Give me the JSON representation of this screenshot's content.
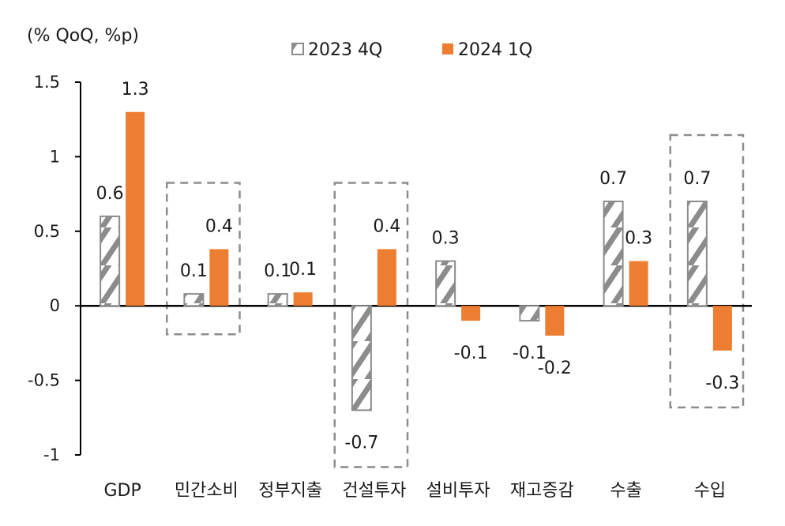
{
  "chart_data": {
    "type": "bar",
    "unit_label": "(% QoQ, %p)",
    "categories": [
      "GDP",
      "민간소비",
      "정부지출",
      "건설투자",
      "설비투자",
      "재고증감",
      "수출",
      "수입"
    ],
    "series": [
      {
        "name": "2023 4Q",
        "values": [
          0.6,
          0.08,
          0.08,
          -0.7,
          0.3,
          -0.1,
          0.7,
          0.7
        ],
        "labels": [
          "0.6",
          "0.1",
          "0.1",
          "-0.7",
          "0.3",
          "-0.1",
          "0.7",
          "0.7"
        ],
        "fill": "hatched",
        "color": "#8c8c8c"
      },
      {
        "name": "2024 1Q",
        "values": [
          1.3,
          0.38,
          0.09,
          0.38,
          -0.1,
          -0.2,
          0.3,
          -0.3
        ],
        "labels": [
          "1.3",
          "0.4",
          "0.1",
          "0.4",
          "-0.1",
          "-0.2",
          "0.3",
          "-0.3"
        ],
        "fill": "solid",
        "color": "#ed7d31"
      }
    ],
    "ylim": [
      -1,
      1.5
    ],
    "yticks": [
      1.5,
      1,
      0.5,
      0,
      -0.5,
      -1
    ],
    "ytick_labels": [
      "1.5",
      "1",
      "0.5",
      "0",
      "-0.5",
      "-1"
    ],
    "legend_position": "top-center",
    "highlighted_categories": [
      "민간소비",
      "건설투자",
      "수입"
    ],
    "highlight_style": "dashed box",
    "grid": false
  }
}
